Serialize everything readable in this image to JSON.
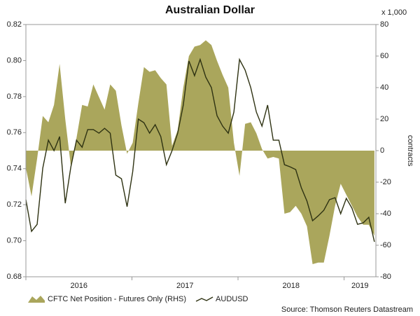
{
  "chart_data": {
    "type": "line",
    "title": "Australian Dollar",
    "y2_unit": "x 1,000",
    "y2_label": "contracts",
    "source": "Source: Thomson Reuters Datastream",
    "x": [
      2016,
      2016.053,
      2016.106,
      2016.159,
      2016.212,
      2016.265,
      2016.318,
      2016.371,
      2016.424,
      2016.477,
      2016.53,
      2016.583,
      2016.636,
      2016.689,
      2016.742,
      2016.795,
      2016.848,
      2016.901,
      2016.954,
      2017.007,
      2017.06,
      2017.113,
      2017.166,
      2017.219,
      2017.272,
      2017.325,
      2017.378,
      2017.431,
      2017.484,
      2017.537,
      2017.59,
      2017.643,
      2017.696,
      2017.749,
      2017.802,
      2017.855,
      2017.908,
      2017.961,
      2018.014,
      2018.067,
      2018.12,
      2018.173,
      2018.226,
      2018.279,
      2018.332,
      2018.385,
      2018.438,
      2018.491,
      2018.544,
      2018.597,
      2018.65,
      2018.703,
      2018.756,
      2018.809,
      2018.862,
      2018.915,
      2018.968,
      2019.021,
      2019.074,
      2019.127,
      2019.18,
      2019.233,
      2019.286
    ],
    "xlim": [
      2016,
      2019.3
    ],
    "xticks": [
      2016,
      2017,
      2018,
      2019
    ],
    "ylim": [
      0.68,
      0.82
    ],
    "yticks": [
      0.68,
      {
        "value": 0.7,
        "label": "0.70"
      },
      0.72,
      0.74,
      0.76,
      0.78,
      {
        "value": 0.8,
        "label": "0.80"
      },
      0.82
    ],
    "y2lim": [
      -80,
      80
    ],
    "y2ticks": [
      -80,
      -60,
      -40,
      -20,
      0,
      20,
      40,
      60,
      80
    ],
    "series": [
      {
        "name": "CFTC Net Position - Futures Only (RHS)",
        "type": "area",
        "axis": "y2",
        "color": "#aaa65c",
        "values": [
          -11,
          -29,
          -5,
          22,
          18,
          29,
          55,
          20,
          -10,
          8,
          29,
          28,
          42,
          34,
          26,
          42,
          38,
          16,
          -2,
          5,
          30,
          53,
          50,
          51,
          46,
          42,
          3,
          13,
          40,
          60,
          66,
          67,
          70,
          67,
          57,
          48,
          40,
          5,
          -16,
          17,
          18,
          11,
          1,
          -5,
          -4,
          -5,
          -40,
          -39,
          -35,
          -40,
          -48,
          -72,
          -71,
          -71,
          -54,
          -35,
          -21,
          -28,
          -35,
          -42,
          -47,
          -47,
          -54
        ]
      },
      {
        "name": "AUDUSD",
        "type": "line",
        "color": "#2e3212",
        "values": [
          0.7228,
          0.7052,
          0.7091,
          0.7403,
          0.7558,
          0.75,
          0.7578,
          0.7208,
          0.741,
          0.7558,
          0.7519,
          0.7617,
          0.7617,
          0.7597,
          0.7624,
          0.7597,
          0.7364,
          0.7344,
          0.7189,
          0.7383,
          0.7675,
          0.7655,
          0.7597,
          0.7644,
          0.7578,
          0.7422,
          0.75,
          0.7597,
          0.7753,
          0.7998,
          0.7916,
          0.8006,
          0.7908,
          0.785,
          0.7694,
          0.7636,
          0.7597,
          0.7714,
          0.8006,
          0.7947,
          0.785,
          0.7714,
          0.7636,
          0.7753,
          0.7558,
          0.7558,
          0.7422,
          0.741,
          0.7395,
          0.7294,
          0.722,
          0.7111,
          0.7138,
          0.7169,
          0.7228,
          0.7239,
          0.715,
          0.7235,
          0.7181,
          0.7091,
          0.7099,
          0.713,
          0.6994
        ]
      }
    ]
  }
}
